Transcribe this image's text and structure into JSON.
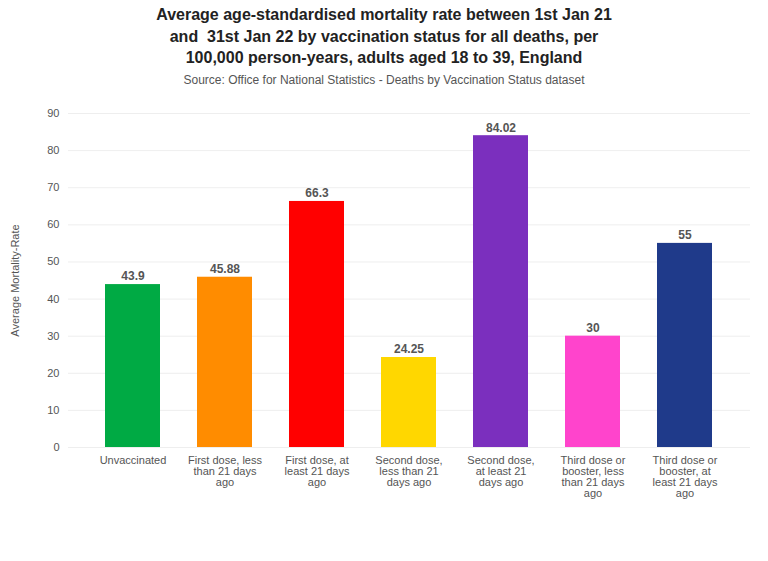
{
  "chart_data": {
    "type": "bar",
    "title": "Average age-standardised mortality rate between 1st Jan 21\nand  31st Jan 22 by vaccination status for all deaths, per\n100,000 person-years, adults aged 18 to 39, England",
    "subtitle": "Source: Office for National Statistics - Deaths by Vaccination Status dataset",
    "categories": [
      "Unvaccinated",
      "First dose, less\nthan 21 days\nago",
      "First dose, at\nleast 21 days\nago",
      "Second dose,\nless than 21\ndays ago",
      "Second dose,\nat least 21\ndays ago",
      "Third dose or\nbooster, less\nthan 21 days\nago",
      "Third dose or\nbooster, at\nleast 21 days\nago"
    ],
    "values": [
      43.9,
      45.88,
      66.3,
      24.25,
      84.02,
      30,
      55
    ],
    "colors": [
      "#00aa44",
      "#ff8c00",
      "#ff0000",
      "#ffd700",
      "#7b2fbe",
      "#ff44cc",
      "#1f3a8a"
    ],
    "ylabel": "Average Mortality-Rate",
    "ylim": [
      0,
      90
    ],
    "yticks": [
      0,
      10,
      20,
      30,
      40,
      50,
      60,
      70,
      80,
      90
    ],
    "grid": true,
    "data_labels": true
  }
}
